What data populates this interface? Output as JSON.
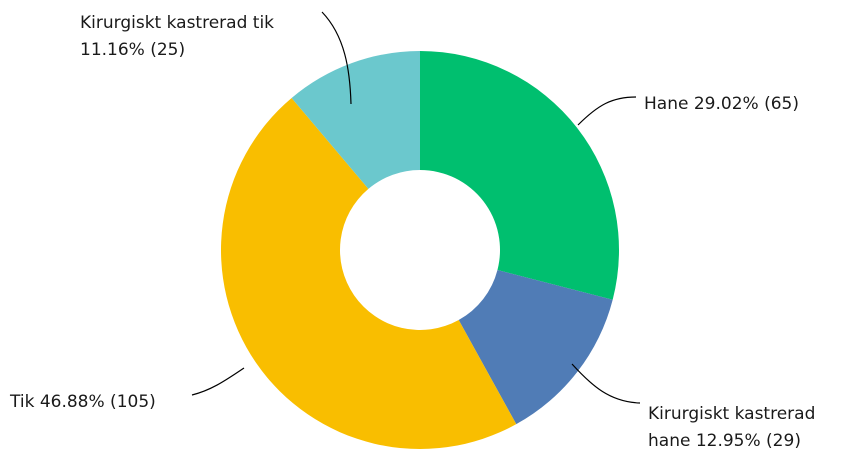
{
  "chart_data": {
    "type": "pie",
    "subtype": "donut",
    "title": "",
    "legend": "none",
    "slices": [
      {
        "label": "Hane",
        "percent_text": "29.02%",
        "count_text": "(65)",
        "value": 65,
        "color": "#00bf6f"
      },
      {
        "label": "Kirurgiskt kastrerad hane",
        "percent_text": "12.95%",
        "count_text": "(29)",
        "value": 29,
        "color": "#507cb6"
      },
      {
        "label": "Tik",
        "percent_text": "46.88%",
        "count_text": "(105)",
        "value": 105,
        "color": "#f9be00"
      },
      {
        "label": "Kirurgiskt kastrerad tik",
        "percent_text": "11.16%",
        "count_text": "(25)",
        "value": 25,
        "color": "#6bc8cd"
      }
    ],
    "label_lines": [
      {
        "line1": "Hane 29.02% (65)",
        "line2": ""
      },
      {
        "line1": "Kirurgiskt kastrerad",
        "line2": "hane 12.95% (29)"
      },
      {
        "line1": "Tik 46.88% (105)",
        "line2": ""
      },
      {
        "line1": "Kirurgiskt kastrerad tik",
        "line2": "11.16% (25)"
      }
    ]
  }
}
